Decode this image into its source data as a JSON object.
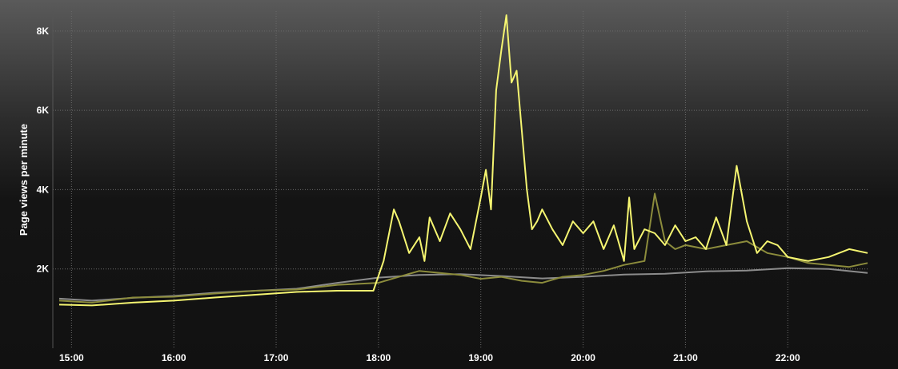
{
  "chart_data": {
    "type": "line",
    "title": "",
    "xlabel": "",
    "ylabel": "Page views per minute",
    "xlim": [
      14.88,
      22.78
    ],
    "ylim": [
      0,
      8500
    ],
    "grid": true,
    "legend": "none",
    "x_ticks": [
      {
        "value": 15,
        "label": "15:00"
      },
      {
        "value": 16,
        "label": "16:00"
      },
      {
        "value": 17,
        "label": "17:00"
      },
      {
        "value": 18,
        "label": "18:00"
      },
      {
        "value": 19,
        "label": "19:00"
      },
      {
        "value": 20,
        "label": "20:00"
      },
      {
        "value": 21,
        "label": "21:00"
      },
      {
        "value": 22,
        "label": "22:00"
      }
    ],
    "y_ticks": [
      {
        "value": 2000,
        "label": "2K"
      },
      {
        "value": 4000,
        "label": "4K"
      },
      {
        "value": 6000,
        "label": "6K"
      },
      {
        "value": 8000,
        "label": "8K"
      }
    ],
    "series": [
      {
        "color": "#8c8c8c",
        "x": [
          14.88,
          15.2,
          15.6,
          16.0,
          16.4,
          16.8,
          17.2,
          17.6,
          18.0,
          18.4,
          18.8,
          19.2,
          19.6,
          20.0,
          20.4,
          20.8,
          21.2,
          21.6,
          22.0,
          22.4,
          22.78
        ],
        "values": [
          1250,
          1200,
          1270,
          1320,
          1400,
          1450,
          1500,
          1650,
          1780,
          1850,
          1870,
          1820,
          1760,
          1800,
          1860,
          1880,
          1940,
          1960,
          2020,
          2000,
          1900
        ]
      },
      {
        "color": "#8c8c3c",
        "x": [
          14.88,
          15.2,
          15.6,
          16.0,
          16.4,
          16.8,
          17.2,
          17.6,
          18.0,
          18.2,
          18.4,
          18.6,
          18.8,
          19.0,
          19.2,
          19.4,
          19.6,
          19.8,
          20.0,
          20.2,
          20.4,
          20.6,
          20.7,
          20.8,
          20.9,
          21.0,
          21.2,
          21.4,
          21.6,
          21.8,
          22.0,
          22.2,
          22.4,
          22.6,
          22.78
        ],
        "values": [
          1200,
          1150,
          1280,
          1300,
          1380,
          1450,
          1480,
          1600,
          1650,
          1800,
          1950,
          1900,
          1850,
          1750,
          1800,
          1700,
          1650,
          1800,
          1850,
          1950,
          2100,
          2200,
          3900,
          2700,
          2500,
          2600,
          2500,
          2600,
          2700,
          2400,
          2300,
          2150,
          2100,
          2050,
          2150
        ]
      },
      {
        "color": "#f5f571",
        "x": [
          14.88,
          15.2,
          15.6,
          16.0,
          16.4,
          16.8,
          17.2,
          17.6,
          17.95,
          18.05,
          18.15,
          18.2,
          18.3,
          18.4,
          18.45,
          18.5,
          18.6,
          18.7,
          18.8,
          18.9,
          19.0,
          19.05,
          19.1,
          19.15,
          19.2,
          19.25,
          19.3,
          19.35,
          19.4,
          19.45,
          19.5,
          19.55,
          19.6,
          19.7,
          19.8,
          19.9,
          20.0,
          20.1,
          20.2,
          20.3,
          20.4,
          20.45,
          20.5,
          20.6,
          20.7,
          20.8,
          20.9,
          21.0,
          21.1,
          21.2,
          21.3,
          21.4,
          21.5,
          21.6,
          21.7,
          21.8,
          21.9,
          22.0,
          22.2,
          22.4,
          22.6,
          22.78
        ],
        "values": [
          1100,
          1080,
          1150,
          1200,
          1280,
          1350,
          1420,
          1450,
          1450,
          2200,
          3500,
          3200,
          2400,
          2800,
          2200,
          3300,
          2700,
          3400,
          3000,
          2500,
          3800,
          4500,
          3500,
          6500,
          7500,
          8400,
          6700,
          7000,
          5500,
          4000,
          3000,
          3200,
          3500,
          3000,
          2600,
          3200,
          2900,
          3200,
          2500,
          3100,
          2200,
          3800,
          2500,
          3000,
          2900,
          2600,
          3100,
          2700,
          2800,
          2500,
          3300,
          2600,
          4600,
          3200,
          2400,
          2700,
          2600,
          2300,
          2200,
          2300,
          2500,
          2400
        ]
      }
    ]
  }
}
